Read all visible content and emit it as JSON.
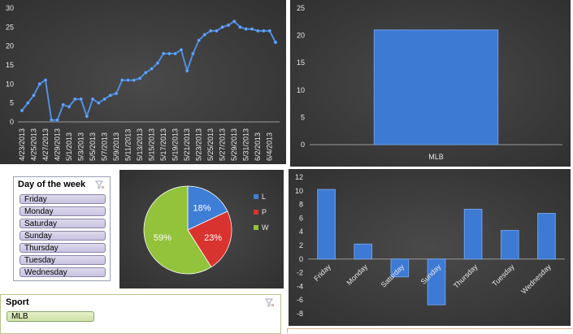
{
  "line_chart": {
    "chart_data": {
      "type": "line",
      "x": [
        "4/23/2013",
        "4/24/2013",
        "4/25/2013",
        "4/26/2013",
        "4/27/2013",
        "4/28/2013",
        "4/29/2013",
        "4/30/2013",
        "5/1/2013",
        "5/2/2013",
        "5/3/2013",
        "5/4/2013",
        "5/5/2013",
        "5/6/2013",
        "5/7/2013",
        "5/8/2013",
        "5/9/2013",
        "5/10/2013",
        "5/11/2013",
        "5/12/2013",
        "5/13/2013",
        "5/14/2013",
        "5/15/2013",
        "5/16/2013",
        "5/17/2013",
        "5/18/2013",
        "5/19/2013",
        "5/20/2013",
        "5/21/2013",
        "5/22/2013",
        "5/23/2013",
        "5/24/2013",
        "5/25/2013",
        "5/26/2013",
        "5/27/2013",
        "5/28/2013",
        "5/29/2013",
        "5/30/2013",
        "5/31/2013",
        "6/1/2013",
        "6/2/2013",
        "6/3/2013",
        "6/4/2013",
        "6/5/2013"
      ],
      "tick_labels": [
        "4/23/2013",
        "4/25/2013",
        "4/27/2013",
        "4/29/2013",
        "5/1/2013",
        "5/3/2013",
        "5/5/2013",
        "5/7/2013",
        "5/9/2013",
        "5/11/2013",
        "5/13/2013",
        "5/15/2013",
        "5/17/2013",
        "5/19/2013",
        "5/21/2013",
        "5/23/2013",
        "5/25/2013",
        "5/27/2013",
        "5/29/2013",
        "5/31/2013",
        "6/2/2013",
        "6/4/2013"
      ],
      "values": [
        3,
        5,
        7,
        10,
        11,
        0.5,
        0.5,
        4.5,
        4,
        6,
        6,
        1.5,
        6,
        5,
        6,
        7,
        7.5,
        11,
        11,
        11,
        11.5,
        13,
        14,
        15.5,
        18,
        18,
        18,
        19,
        13.5,
        18,
        21.5,
        23,
        24,
        24,
        25,
        25.5,
        26.5,
        25,
        24.5,
        24.5,
        24,
        24,
        24,
        21
      ],
      "ylim": [
        0,
        30
      ],
      "yticks": [
        "30",
        "25",
        "20",
        "15",
        "10",
        "5",
        "0"
      ],
      "color": "#4f8fe0"
    }
  },
  "bar_chart_top": {
    "chart_data": {
      "type": "bar",
      "categories": [
        "MLB"
      ],
      "values": [
        21
      ],
      "ylim": [
        0,
        25
      ],
      "yticks": [
        "25",
        "20",
        "15",
        "10",
        "5",
        "0"
      ],
      "color": "#3d7ad4"
    }
  },
  "pie_chart": {
    "chart_data": {
      "type": "pie",
      "slices": [
        {
          "name": "L",
          "value": 18,
          "label": "18%",
          "color": "#3f7ed6"
        },
        {
          "name": "P",
          "value": 23,
          "label": "23%",
          "color": "#d9332f"
        },
        {
          "name": "W",
          "value": 59,
          "label": "59%",
          "color": "#93c23b"
        }
      ],
      "legend_position": "right"
    },
    "legend": [
      "L",
      "P",
      "W"
    ]
  },
  "bar_chart_days": {
    "chart_data": {
      "type": "bar",
      "categories": [
        "Friday",
        "Monday",
        "Saturday",
        "Sunday",
        "Thursday",
        "Tuesday",
        "Wednesday"
      ],
      "values": [
        10.2,
        2.2,
        -2.6,
        -6.7,
        7.3,
        4.2,
        6.7
      ],
      "ylim": [
        -8,
        12
      ],
      "yticks": [
        "12",
        "10",
        "8",
        "6",
        "4",
        "2",
        "0",
        "-2",
        "-4",
        "-6",
        "-8"
      ],
      "color": "#3d7ad4"
    }
  },
  "day_slicer": {
    "title": "Day of the week",
    "filter_icon": "clear-filter-icon",
    "items": [
      "Friday",
      "Monday",
      "Saturday",
      "Sunday",
      "Thursday",
      "Tuesday",
      "Wednesday"
    ]
  },
  "sport_slicer": {
    "title": "Sport",
    "filter_icon": "clear-filter-icon",
    "items": [
      "MLB"
    ]
  }
}
